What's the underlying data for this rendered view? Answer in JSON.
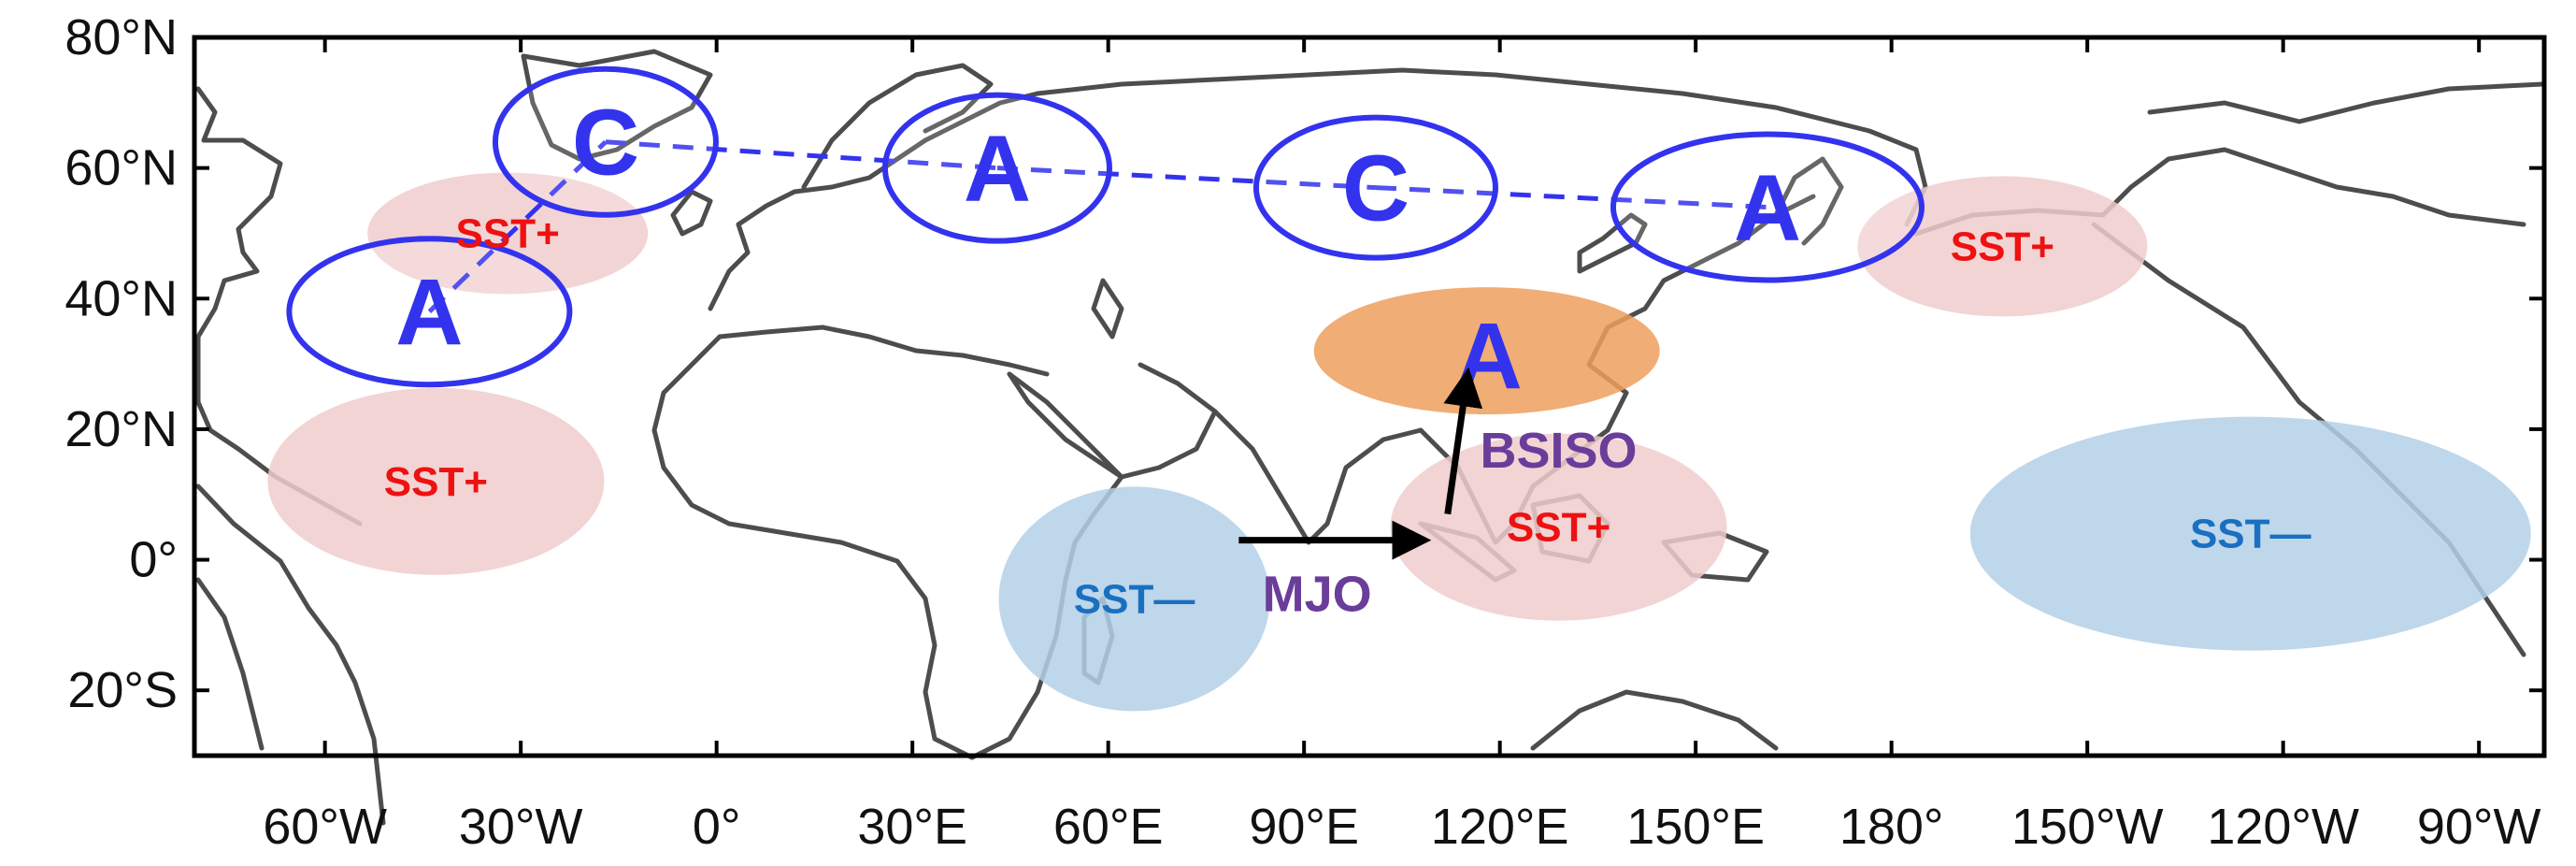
{
  "figure": {
    "y_axis_labels": [
      "80°N",
      "60°N",
      "40°N",
      "20°N",
      "0°",
      "20°S"
    ],
    "x_axis_labels": [
      "60°W",
      "30°W",
      "0°",
      "30°E",
      "60°E",
      "90°E",
      "120°E",
      "150°E",
      "180°",
      "150°W",
      "120°W",
      "90°W"
    ]
  },
  "wave_train_centers": [
    {
      "id": "a1",
      "label": "A",
      "type": "anticyclone",
      "lon": -44,
      "lat": 38
    },
    {
      "id": "c1",
      "label": "C",
      "type": "cyclone",
      "lon": -17,
      "lat": 64
    },
    {
      "id": "a2",
      "label": "A",
      "type": "anticyclone",
      "lon": 43,
      "lat": 60
    },
    {
      "id": "c2",
      "label": "C",
      "type": "cyclone",
      "lon": 101,
      "lat": 57
    },
    {
      "id": "a3",
      "label": "A",
      "type": "anticyclone",
      "lon": 161,
      "lat": 54
    }
  ],
  "highlight_center": {
    "label": "A",
    "lon": 118,
    "lat": 32,
    "color": "#ee1111"
  },
  "sst_regions": [
    {
      "label": "SST+",
      "sign": "positive",
      "lon": -32,
      "lat": 50
    },
    {
      "label": "SST+",
      "sign": "positive",
      "lon": -43,
      "lat": 12
    },
    {
      "label": "SST+",
      "sign": "positive",
      "lon": 197,
      "lat": 48
    },
    {
      "label": "SST+",
      "sign": "positive",
      "lon": 129,
      "lat": 5
    },
    {
      "label": "SST—",
      "sign": "negative",
      "lon": 64,
      "lat": -6
    },
    {
      "label": "SST—",
      "sign": "negative",
      "lon": 235,
      "lat": 4
    }
  ],
  "modes": [
    {
      "id": "mjo",
      "label": "MJO",
      "direction": "eastward"
    },
    {
      "id": "bsiso",
      "label": "BSISO",
      "direction": "northward"
    }
  ],
  "colors": {
    "sst_positive_fill": "#f0cccc",
    "sst_positive_text": "#ee1111",
    "sst_negative_fill": "#b4d0e8",
    "sst_negative_text": "#1a70c0",
    "center_outline": "#3333ee",
    "center_text": "#3333ee",
    "highlight_fill": "#ee9f5e",
    "mode_text": "#6a3d9a",
    "arrow": "#000000",
    "coastline": "#4d4d4d"
  }
}
